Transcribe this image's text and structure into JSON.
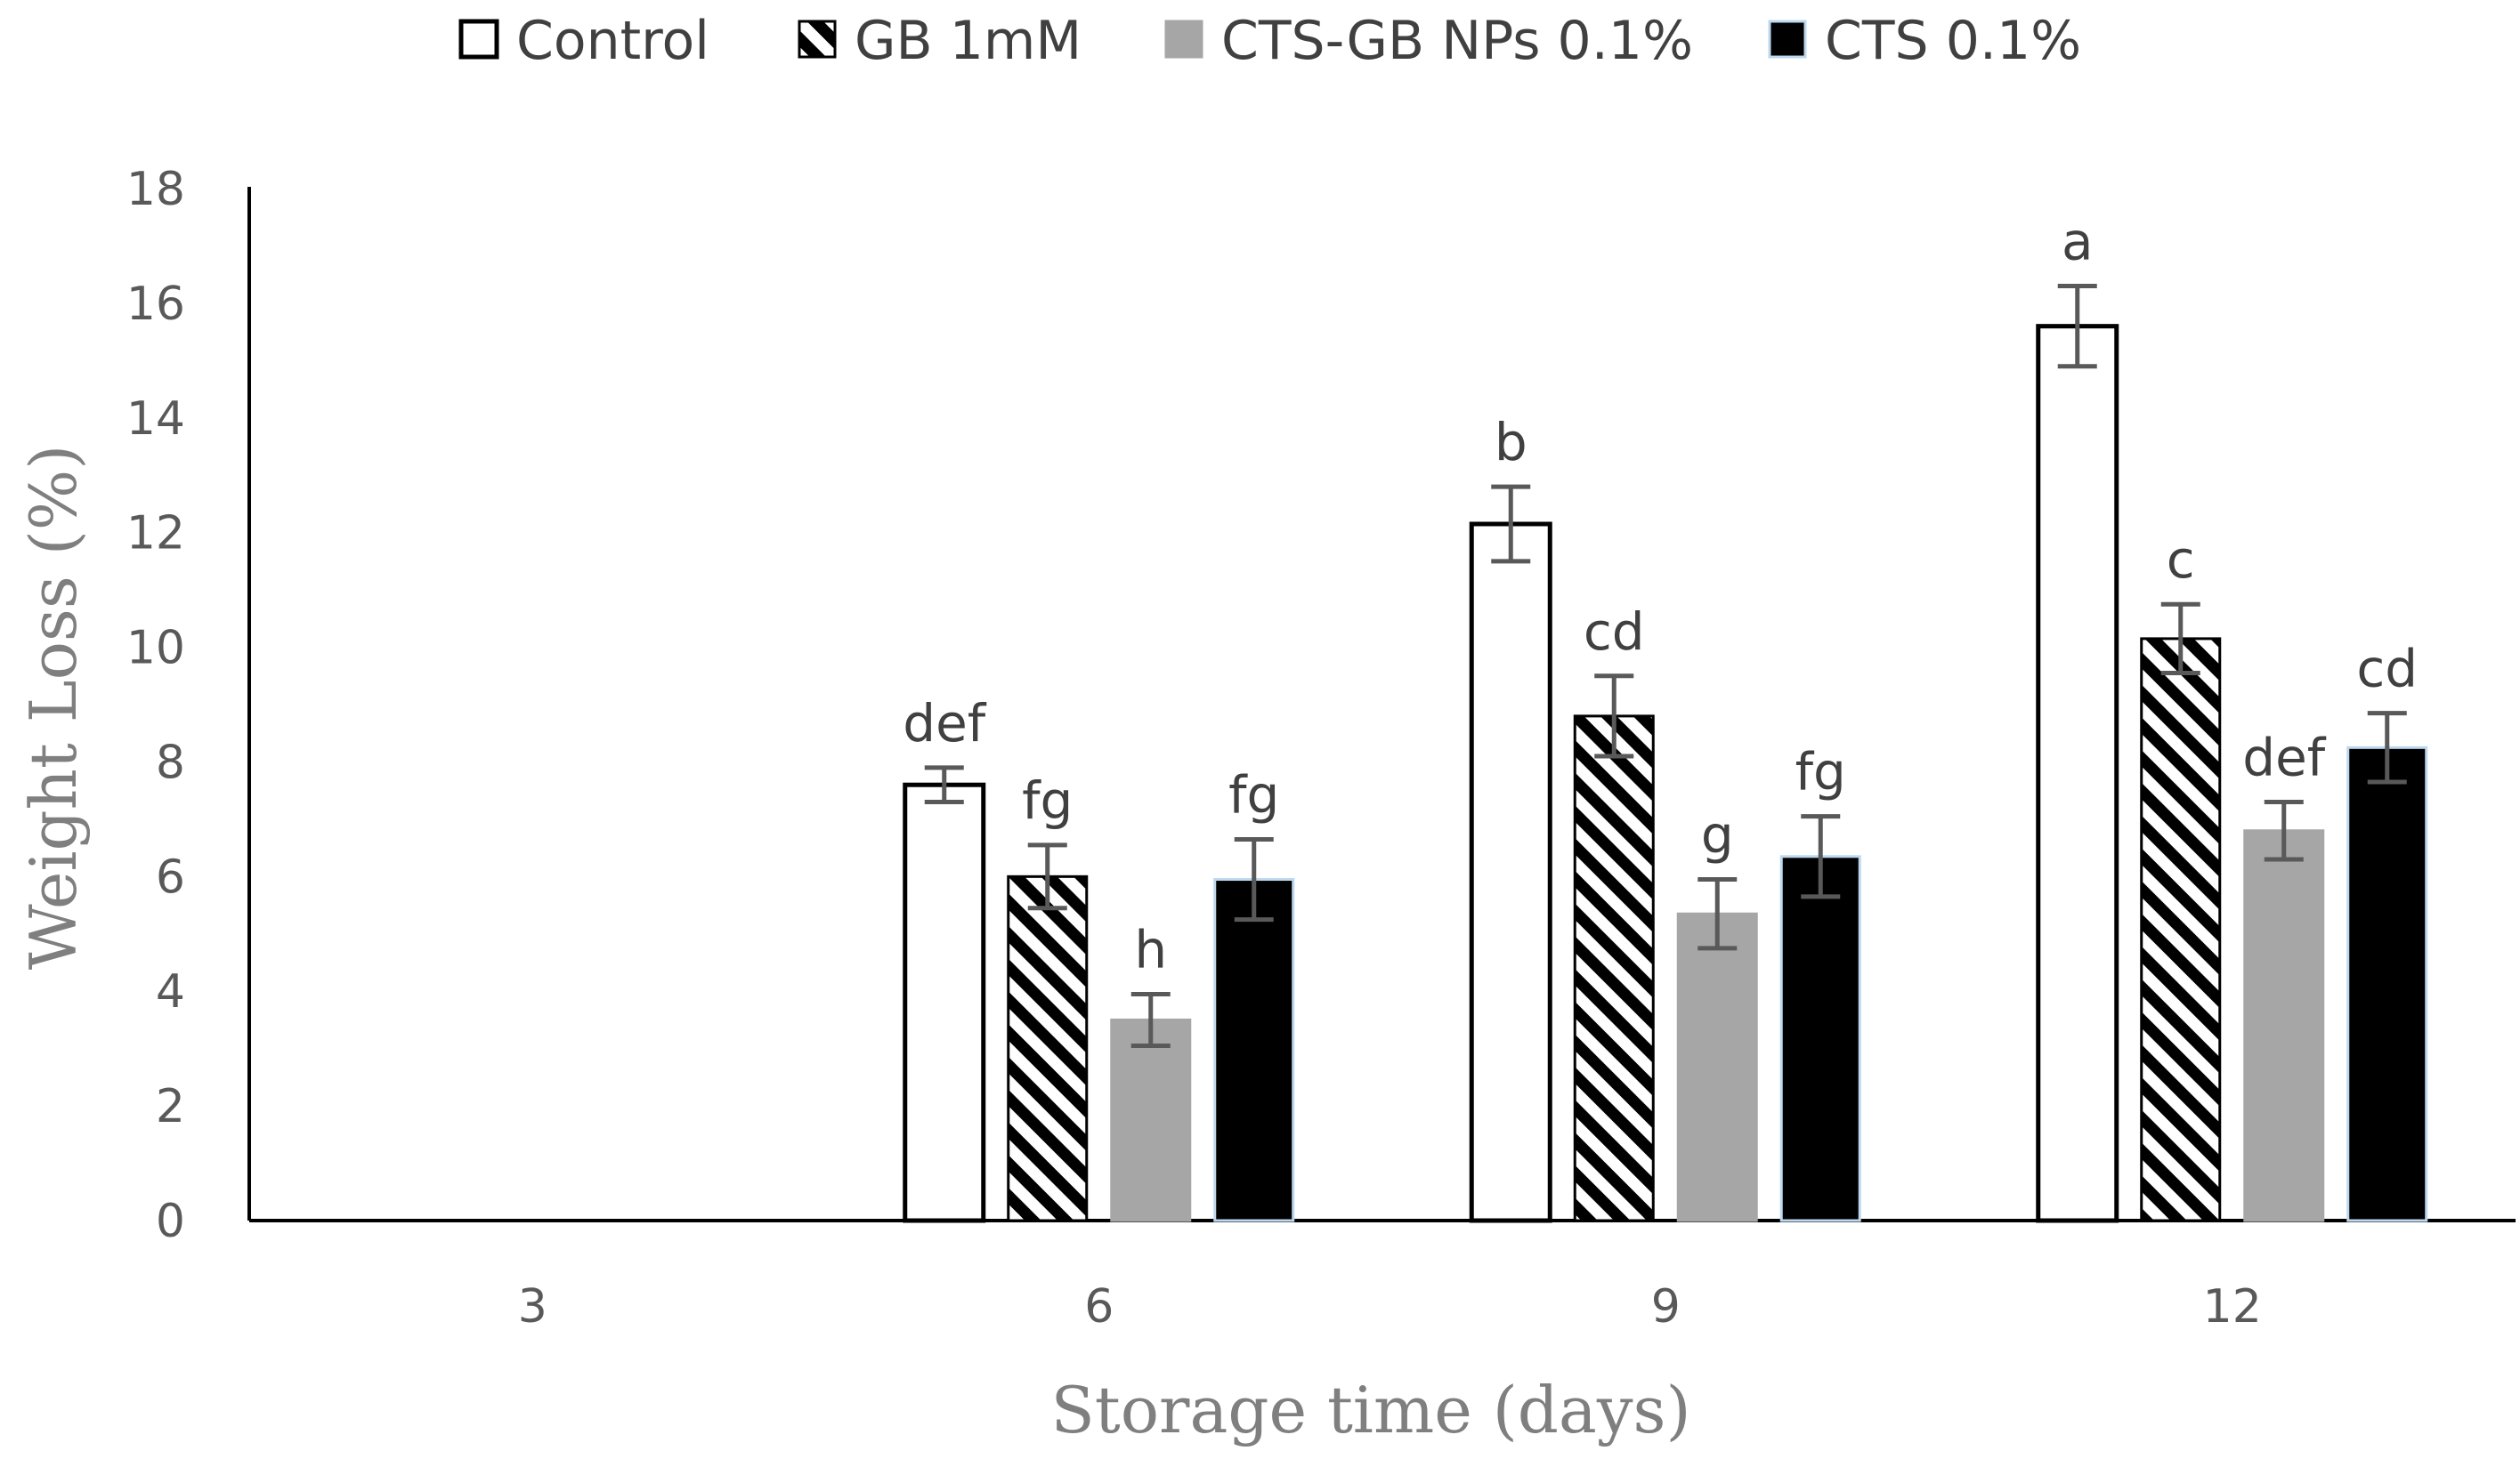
{
  "chart_data": {
    "type": "bar",
    "title": "",
    "xlabel": "Storage time (days)",
    "ylabel": "Weight Loss (%)",
    "ylim": [
      0,
      18
    ],
    "yticks": [
      "0",
      "2",
      "4",
      "6",
      "8",
      "10",
      "12",
      "14",
      "16",
      "18"
    ],
    "categories": [
      "3",
      "6",
      "9",
      "12"
    ],
    "grid": false,
    "legend_position": "top",
    "series": [
      {
        "name": "Control",
        "style": "outline",
        "fill": "#ffffff",
        "stroke": "#000000",
        "values": [
          0,
          7.6,
          12.15,
          15.6
        ],
        "errors": [
          0,
          0.3,
          0.65,
          0.7
        ],
        "labels": [
          "",
          "def",
          "b",
          "a"
        ]
      },
      {
        "name": "GB 1mM",
        "style": "hatch",
        "fill": "#000000",
        "stroke": "#000000",
        "values": [
          0,
          6.0,
          8.8,
          10.15
        ],
        "errors": [
          0,
          0.55,
          0.7,
          0.6
        ],
        "labels": [
          "",
          "fg",
          "cd",
          "c"
        ]
      },
      {
        "name": "CTS-GB NPs 0.1%",
        "style": "solid",
        "fill": "#a6a6a6",
        "stroke": "#a6a6a6",
        "values": [
          0,
          3.5,
          5.35,
          6.8
        ],
        "errors": [
          0,
          0.45,
          0.6,
          0.5
        ],
        "labels": [
          "",
          "h",
          "g",
          "def"
        ]
      },
      {
        "name": "CTS 0.1%",
        "style": "solid",
        "fill": "#000000",
        "stroke": "#bdd7ee",
        "values": [
          0,
          5.95,
          6.35,
          8.25
        ],
        "errors": [
          0,
          0.7,
          0.7,
          0.6
        ],
        "labels": [
          "",
          "fg",
          "fg",
          "cd"
        ]
      }
    ],
    "error_bar_color": "#595959"
  }
}
